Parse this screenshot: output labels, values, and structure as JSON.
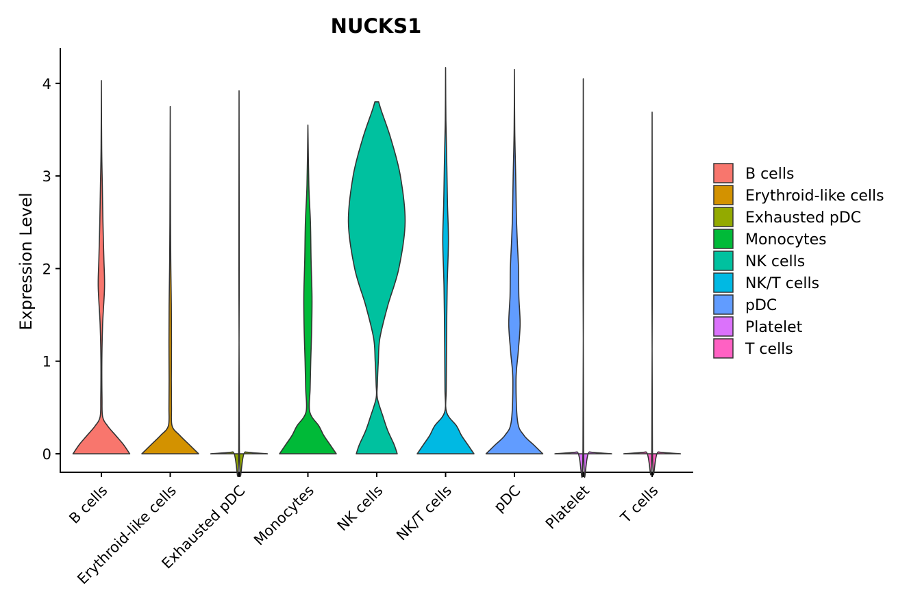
{
  "chart_data": {
    "type": "violin",
    "title": "NUCKS1",
    "xlabel": "",
    "ylabel": "Expression Level",
    "ylim": [
      -0.2,
      4.4
    ],
    "yticks": [
      "0",
      "1",
      "2",
      "3",
      "4"
    ],
    "grid": false,
    "legend_position": "right",
    "categories": [
      "B cells",
      "Erythroid-like cells",
      "Exhausted pDC",
      "Monocytes",
      "NK cells",
      "NK/T cells",
      "pDC",
      "Platelet",
      "T cells"
    ],
    "colors": [
      "#F8766D",
      "#D39200",
      "#93AA00",
      "#00BA38",
      "#00C19F",
      "#00B9E3",
      "#619CFF",
      "#DB72FB",
      "#FF61C3"
    ],
    "max_values": [
      4.03,
      3.75,
      3.92,
      3.55,
      3.8,
      4.17,
      4.15,
      4.05,
      3.69
    ],
    "violins": [
      {
        "name": "B cells",
        "profile": [
          [
            0,
            0.9
          ],
          [
            0.1,
            0.7
          ],
          [
            0.2,
            0.45
          ],
          [
            0.3,
            0.2
          ],
          [
            0.4,
            0.04
          ],
          [
            0.6,
            0.02
          ],
          [
            1.0,
            0.015
          ],
          [
            1.4,
            0.04
          ],
          [
            1.8,
            0.1
          ],
          [
            2.1,
            0.08
          ],
          [
            2.5,
            0.05
          ],
          [
            2.9,
            0.03
          ],
          [
            3.3,
            0.01
          ],
          [
            4.03,
            0.0
          ]
        ]
      },
      {
        "name": "Erythroid-like cells",
        "profile": [
          [
            0,
            0.9
          ],
          [
            0.1,
            0.6
          ],
          [
            0.2,
            0.3
          ],
          [
            0.3,
            0.06
          ],
          [
            0.5,
            0.04
          ],
          [
            0.8,
            0.035
          ],
          [
            1.2,
            0.04
          ],
          [
            1.6,
            0.035
          ],
          [
            2.0,
            0.02
          ],
          [
            2.5,
            0.01
          ],
          [
            3.75,
            0.0
          ]
        ]
      },
      {
        "name": "Exhausted pDC",
        "profile": [
          [
            0,
            0.9
          ],
          [
            0.02,
            0.2
          ],
          [
            0.05,
            0.01
          ],
          [
            3.92,
            0.0
          ]
        ]
      },
      {
        "name": "Monocytes",
        "profile": [
          [
            0,
            0.9
          ],
          [
            0.1,
            0.7
          ],
          [
            0.2,
            0.5
          ],
          [
            0.3,
            0.35
          ],
          [
            0.45,
            0.06
          ],
          [
            0.7,
            0.07
          ],
          [
            1.0,
            0.09
          ],
          [
            1.35,
            0.12
          ],
          [
            1.7,
            0.13
          ],
          [
            2.1,
            0.1
          ],
          [
            2.5,
            0.08
          ],
          [
            2.9,
            0.03
          ],
          [
            3.55,
            0.0
          ]
        ]
      },
      {
        "name": "NK cells",
        "profile": [
          [
            0,
            0.65
          ],
          [
            0.1,
            0.55
          ],
          [
            0.25,
            0.35
          ],
          [
            0.4,
            0.2
          ],
          [
            0.6,
            0.02
          ],
          [
            0.75,
            0.02
          ],
          [
            1.0,
            0.05
          ],
          [
            1.25,
            0.1
          ],
          [
            1.6,
            0.35
          ],
          [
            2.0,
            0.7
          ],
          [
            2.5,
            0.9
          ],
          [
            3.0,
            0.75
          ],
          [
            3.4,
            0.45
          ],
          [
            3.7,
            0.15
          ],
          [
            3.8,
            0.06
          ]
        ]
      },
      {
        "name": "NK/T cells",
        "profile": [
          [
            0,
            0.9
          ],
          [
            0.1,
            0.7
          ],
          [
            0.2,
            0.5
          ],
          [
            0.3,
            0.35
          ],
          [
            0.45,
            0.03
          ],
          [
            0.7,
            0.02
          ],
          [
            1.2,
            0.03
          ],
          [
            1.8,
            0.05
          ],
          [
            2.3,
            0.09
          ],
          [
            2.7,
            0.06
          ],
          [
            3.1,
            0.04
          ],
          [
            3.6,
            0.01
          ],
          [
            4.17,
            0.0
          ]
        ]
      },
      {
        "name": "pDC",
        "profile": [
          [
            0,
            0.9
          ],
          [
            0.1,
            0.6
          ],
          [
            0.2,
            0.3
          ],
          [
            0.35,
            0.1
          ],
          [
            0.8,
            0.05
          ],
          [
            1.1,
            0.12
          ],
          [
            1.4,
            0.18
          ],
          [
            1.7,
            0.14
          ],
          [
            2.0,
            0.13
          ],
          [
            2.3,
            0.09
          ],
          [
            2.6,
            0.06
          ],
          [
            3.0,
            0.04
          ],
          [
            3.5,
            0.01
          ],
          [
            4.15,
            0.0
          ]
        ]
      },
      {
        "name": "Platelet",
        "profile": [
          [
            0,
            0.9
          ],
          [
            0.02,
            0.2
          ],
          [
            0.05,
            0.01
          ],
          [
            4.05,
            0.0
          ]
        ]
      },
      {
        "name": "T cells",
        "profile": [
          [
            0,
            0.9
          ],
          [
            0.02,
            0.2
          ],
          [
            0.05,
            0.01
          ],
          [
            3.69,
            0.0
          ]
        ]
      }
    ]
  }
}
